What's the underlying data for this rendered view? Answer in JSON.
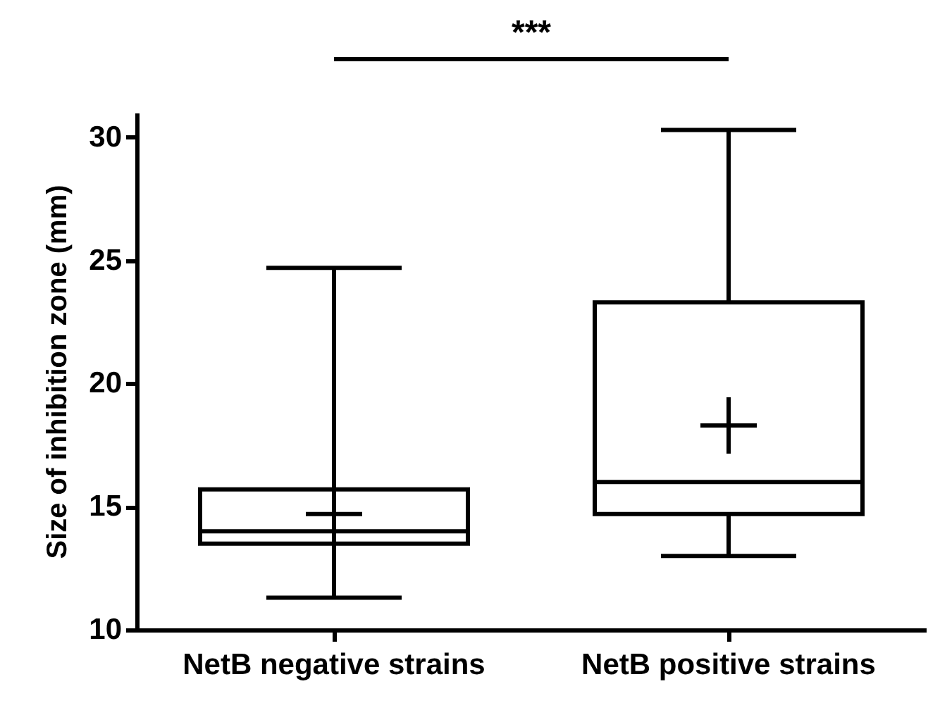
{
  "chart_data": {
    "type": "box",
    "ylabel": "Size of inhibition zone (mm)",
    "categories": [
      "NetB negative strains",
      "NetB positive strains"
    ],
    "boxes": [
      {
        "low": 11.3,
        "q1": 13.5,
        "median": 14.0,
        "q3": 15.7,
        "high": 24.7,
        "mean": 14.7
      },
      {
        "low": 13.0,
        "q1": 14.7,
        "median": 16.0,
        "q3": 23.3,
        "high": 30.3,
        "mean": 18.3
      }
    ],
    "ylim": [
      10,
      31
    ],
    "yticks": [
      10,
      15,
      20,
      25,
      30
    ],
    "annotations": [
      "***"
    ]
  }
}
